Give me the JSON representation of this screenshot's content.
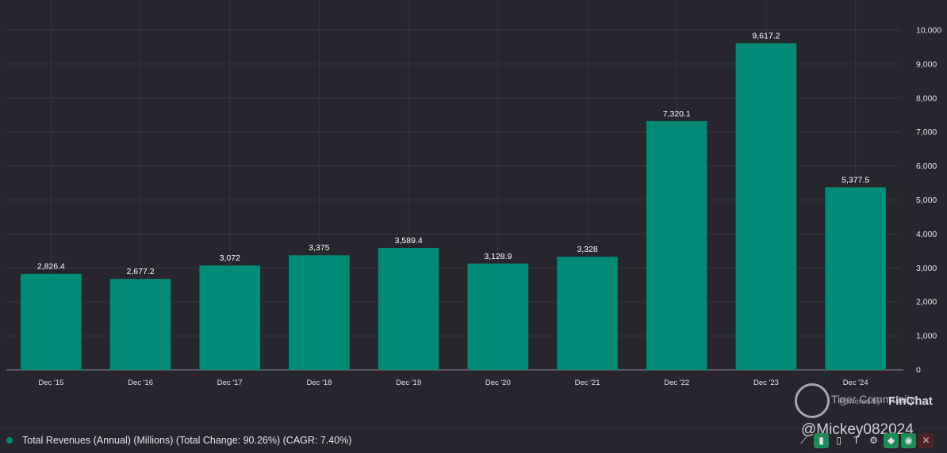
{
  "chart_data": {
    "type": "bar",
    "categories": [
      "Dec '15",
      "Dec '16",
      "Dec '17",
      "Dec '18",
      "Dec '19",
      "Dec '20",
      "Dec '21",
      "Dec '22",
      "Dec '23",
      "Dec '24"
    ],
    "values": [
      2826.4,
      2677.2,
      3072,
      3375,
      3589.4,
      3128.9,
      3328,
      7320.1,
      9617.2,
      5377.5
    ],
    "value_labels": [
      "2,826.4",
      "2,677.2",
      "3,072",
      "3,375",
      "3,589.4",
      "3,128.9",
      "3,328",
      "7,320.1",
      "9,617.2",
      "5,377.5"
    ],
    "ylim": [
      0,
      10000
    ],
    "yticks": [
      0,
      1000,
      2000,
      3000,
      4000,
      5000,
      6000,
      7000,
      8000,
      9000,
      10000
    ],
    "ytick_labels": [
      "0",
      "1,000",
      "2,000",
      "3,000",
      "4,000",
      "5,000",
      "6,000",
      "7,000",
      "8,000",
      "9,000",
      "10,000"
    ],
    "y_axis_position": "right",
    "grid": true,
    "bar_color": "#008b76",
    "series": [
      {
        "name": "Total Revenues (Annual) (Millions) (Total Change: 90.26%) (CAGR: 7.40%)",
        "values": [
          2826.4,
          2677.2,
          3072,
          3375,
          3589.4,
          3128.9,
          3328,
          7320.1,
          9617.2,
          5377.5
        ]
      }
    ],
    "legend_position": "bottom-left"
  },
  "legend": {
    "text": "Total Revenues (Annual) (Millions) (Total Change: 90.26%) (CAGR: 7.40%)",
    "color": "#008b76"
  },
  "branding": {
    "powered_by": "Powered by",
    "name": "FinChat"
  },
  "watermark": {
    "community": "Tiger Community",
    "handle": "@Mickey082024"
  },
  "toolbar": {
    "icons": [
      "trend-icon",
      "bar-chart-icon",
      "bar-small-icon",
      "text-icon",
      "gear-icon",
      "tag-icon",
      "eye-icon",
      "close-icon"
    ]
  }
}
